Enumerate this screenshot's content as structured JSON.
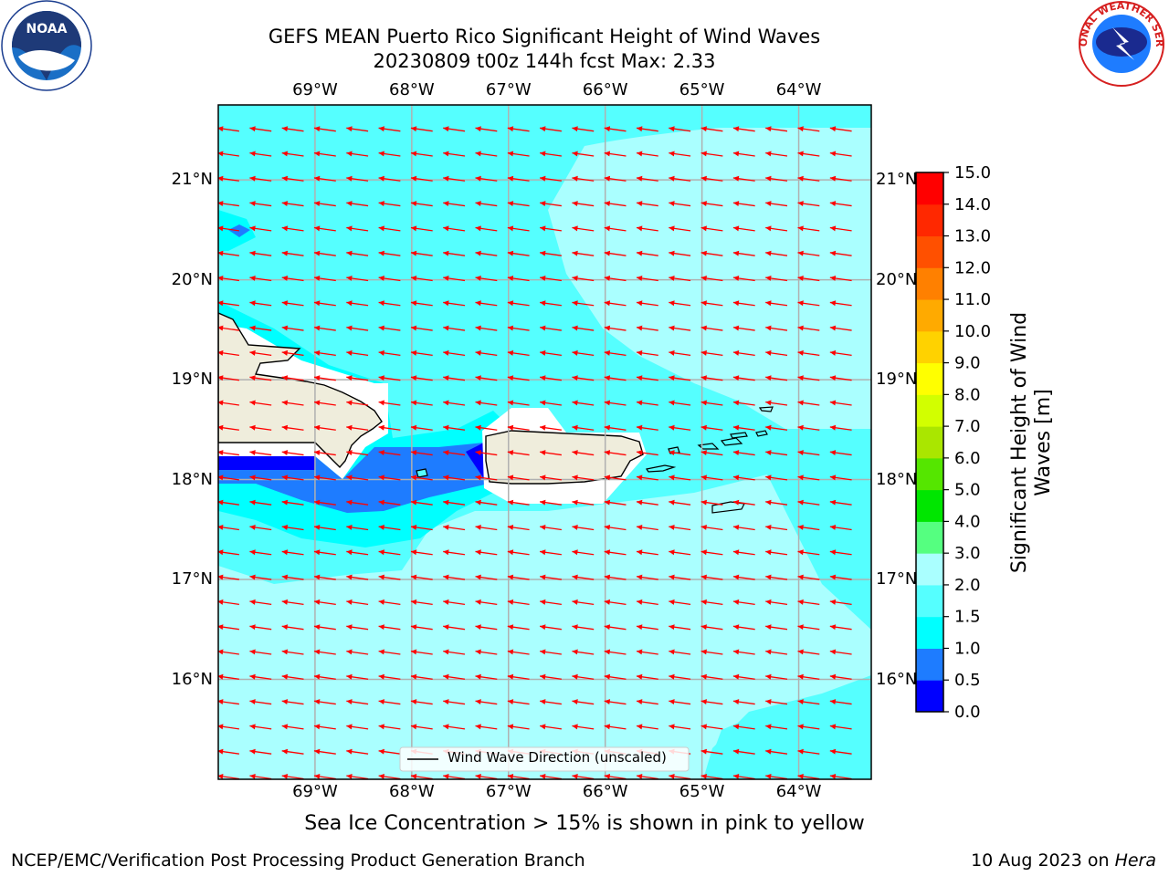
{
  "header": {
    "title_line1": "GEFS MEAN Puerto Rico Significant Height of Wind Waves",
    "title_line2": "20230809 t00z 144h fcst   Max: 2.33"
  },
  "logos": {
    "left": {
      "text": "NOAA",
      "ring_text": "NATIONAL OCEANIC AND ATMOSPHERIC ADMINISTRATION · U.S. DEPARTMENT OF COMMERCE"
    },
    "right": {
      "ring_text": "NATIONAL WEATHER SERVICE"
    }
  },
  "map": {
    "lon_labels": [
      "69°W",
      "68°W",
      "67°W",
      "66°W",
      "65°W",
      "64°W"
    ],
    "lat_labels": [
      "21°N",
      "20°N",
      "19°N",
      "18°N",
      "17°N",
      "16°N"
    ],
    "lon_values": [
      -69,
      -68,
      -67,
      -66,
      -65,
      -64
    ],
    "lat_values": [
      21,
      20,
      19,
      18,
      17,
      16
    ],
    "extent": {
      "lon_min": -70,
      "lon_max": -63.25,
      "lat_min": 15.0,
      "lat_max": 21.75
    },
    "wind_direction": "from east-northeast toward west-southwest",
    "legend_label": "Wind Wave Direction (unscaled)"
  },
  "colorbar": {
    "label": "Significant Height of Wind Waves [m]",
    "ticks": [
      "0.0",
      "0.5",
      "1.0",
      "1.5",
      "2.0",
      "3.0",
      "4.0",
      "5.0",
      "6.0",
      "7.0",
      "8.0",
      "9.0",
      "10.0",
      "11.0",
      "12.0",
      "13.0",
      "14.0",
      "15.0"
    ],
    "colors": [
      "#0000ff",
      "#1e7cff",
      "#00ffff",
      "#55ffff",
      "#aaffff",
      "#55ff80",
      "#00e600",
      "#55e600",
      "#aae600",
      "#d2ff00",
      "#ffff00",
      "#ffd200",
      "#ffaa00",
      "#ff8000",
      "#ff5000",
      "#ff2800",
      "#ff0000"
    ]
  },
  "footer": {
    "note": "Sea Ice Concentration > 15% is shown in pink to yellow",
    "left": "NCEP/EMC/Verification Post Processing Product Generation Branch",
    "right_prefix": "10 Aug 2023 on ",
    "right_machine": "Hera"
  }
}
